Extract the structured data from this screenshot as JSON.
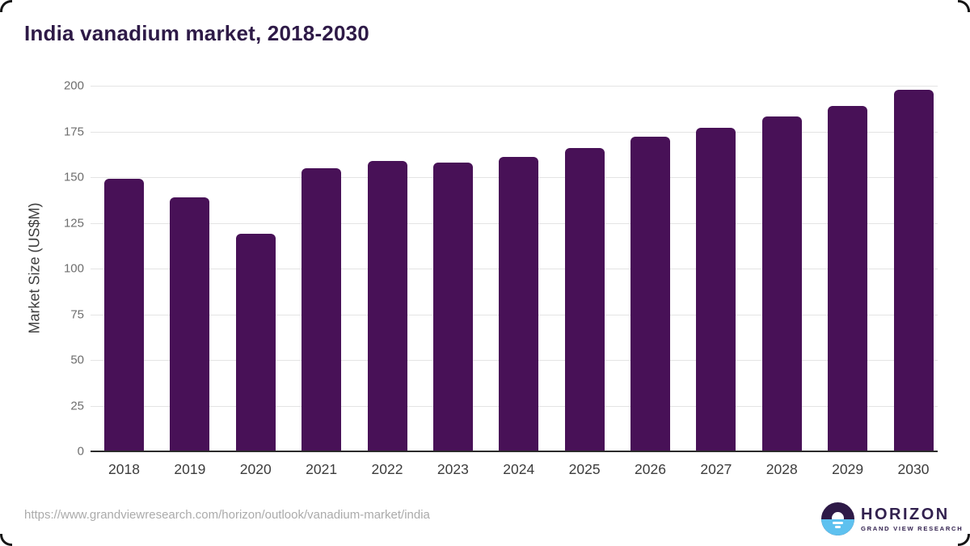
{
  "title": "India vanadium market, 2018-2030",
  "chart_data": {
    "type": "bar",
    "title": "India vanadium market, 2018-2030",
    "categories": [
      "2018",
      "2019",
      "2020",
      "2021",
      "2022",
      "2023",
      "2024",
      "2025",
      "2026",
      "2027",
      "2028",
      "2029",
      "2030"
    ],
    "values": [
      149,
      139,
      119,
      155,
      159,
      158,
      161,
      166,
      172,
      177,
      183,
      189,
      198
    ],
    "xlabel": "",
    "ylabel": "Market Size (US$M)",
    "ylim": [
      0,
      200
    ],
    "ytick_step": 25,
    "yticks": [
      0,
      25,
      50,
      75,
      100,
      125,
      150,
      175,
      200
    ],
    "grid": true,
    "legend": "none",
    "bar_color": "#481157"
  },
  "colors": {
    "title": "#2e1a47",
    "bar": "#481157",
    "gridline": "#e4e4e4",
    "axis_line": "#2b2b2b",
    "ytick_label": "#6e6e6e",
    "xtick_label": "#3c3c3c",
    "url_text": "#ababab",
    "logo_purple": "#2e1a47",
    "logo_blue": "#5ec1ef"
  },
  "footer": {
    "source_url": "https://www.grandviewresearch.com/horizon/outlook/vanadium-market/india",
    "logo": {
      "brand": "HORIZON",
      "sub_brand": "GRAND VIEW RESEARCH"
    }
  }
}
